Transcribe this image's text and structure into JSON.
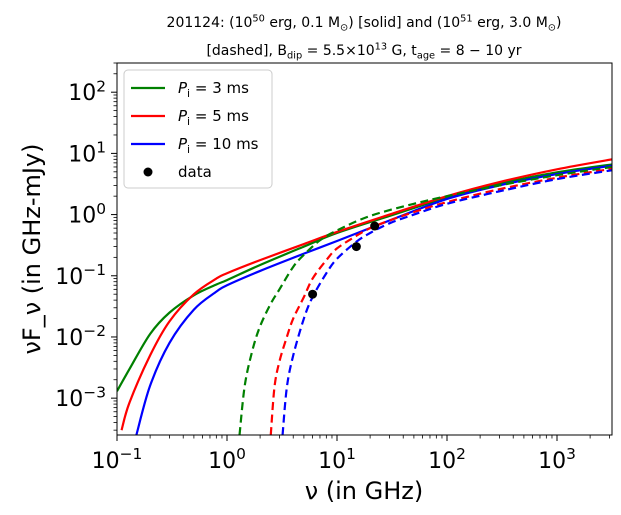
{
  "chart_data": {
    "type": "line",
    "title_line1": "201124: (10^50 erg, 0.1 M_sun) [solid] and (10^51 erg, 3.0 M_sun)",
    "title_line2": "[dashed], B_dip = 5.5×10^13 G, t_age = 8 − 10 yr",
    "xlabel": "ν (in GHz)",
    "ylabel": "νF_ν (in GHz-mJy)",
    "xscale": "log",
    "yscale": "log",
    "xlim": [
      0.1,
      3162
    ],
    "ylim": [
      0.00025,
      300
    ],
    "x_ticks": [
      {
        "value": 0.1,
        "label": "10^−1"
      },
      {
        "value": 1,
        "label": "10^0"
      },
      {
        "value": 10,
        "label": "10^1"
      },
      {
        "value": 100,
        "label": "10^2"
      },
      {
        "value": 1000,
        "label": "10^3"
      }
    ],
    "y_ticks": [
      {
        "value": 0.001,
        "label": "10^−3"
      },
      {
        "value": 0.01,
        "label": "10^−2"
      },
      {
        "value": 0.1,
        "label": "10^−1"
      },
      {
        "value": 1,
        "label": "10^0"
      },
      {
        "value": 10,
        "label": "10^1"
      },
      {
        "value": 100,
        "label": "10^2"
      }
    ],
    "legend": {
      "placement": "top-left",
      "entries": [
        {
          "label": "P_i = 3 ms",
          "color": "#008000",
          "kind": "line"
        },
        {
          "label": "P_i = 5 ms",
          "color": "#ff0000",
          "kind": "line"
        },
        {
          "label": "P_i = 10 ms",
          "color": "#0000ff",
          "kind": "line"
        },
        {
          "label": "data",
          "color": "#000000",
          "kind": "marker"
        }
      ]
    },
    "series": [
      {
        "name": "P_i = 3 ms (solid)",
        "color": "#008000",
        "style": "solid",
        "x": [
          0.1,
          0.13,
          0.2,
          0.3,
          0.5,
          0.8,
          1,
          2,
          5,
          10,
          30,
          100,
          300,
          1000,
          3162
        ],
        "y": [
          0.0013,
          0.003,
          0.0112,
          0.025,
          0.048,
          0.072,
          0.085,
          0.15,
          0.3,
          0.5,
          0.95,
          1.9,
          3.2,
          4.9,
          6.6
        ]
      },
      {
        "name": "P_i = 5 ms (solid)",
        "color": "#ff0000",
        "style": "solid",
        "x": [
          0.11,
          0.13,
          0.2,
          0.3,
          0.5,
          0.8,
          1,
          2,
          5,
          10,
          30,
          100,
          300,
          1000,
          3162
        ],
        "y": [
          0.0003,
          0.00085,
          0.005,
          0.018,
          0.05,
          0.09,
          0.11,
          0.18,
          0.33,
          0.52,
          1.0,
          2.0,
          3.4,
          5.5,
          8.0
        ]
      },
      {
        "name": "P_i = 10 ms (solid)",
        "color": "#0000ff",
        "style": "solid",
        "x": [
          0.15,
          0.2,
          0.3,
          0.5,
          0.8,
          1,
          2,
          5,
          10,
          30,
          100,
          300,
          1000,
          3162
        ],
        "y": [
          0.00025,
          0.0016,
          0.008,
          0.028,
          0.055,
          0.07,
          0.12,
          0.23,
          0.37,
          0.8,
          1.8,
          3.0,
          4.6,
          6.3
        ]
      },
      {
        "name": "P_i = 3 ms (dashed)",
        "color": "#008000",
        "style": "dashed",
        "x": [
          1.3,
          1.45,
          1.7,
          2,
          2.5,
          3,
          4,
          5,
          7,
          10,
          20,
          50,
          100,
          300,
          1000,
          3162
        ],
        "y": [
          0.00025,
          0.0016,
          0.006,
          0.015,
          0.035,
          0.06,
          0.14,
          0.22,
          0.38,
          0.55,
          0.95,
          1.5,
          2.0,
          3.0,
          4.4,
          6.0
        ]
      },
      {
        "name": "P_i = 5 ms (dashed)",
        "color": "#ff0000",
        "style": "dashed",
        "x": [
          2.5,
          2.7,
          3,
          3.5,
          4,
          5,
          6,
          8,
          10,
          15,
          20,
          30,
          50,
          100,
          300,
          1000,
          3162
        ],
        "y": [
          0.00025,
          0.0015,
          0.004,
          0.01,
          0.02,
          0.045,
          0.09,
          0.18,
          0.28,
          0.45,
          0.6,
          0.8,
          1.1,
          1.6,
          2.6,
          4.0,
          5.6
        ]
      },
      {
        "name": "P_i = 10 ms (dashed)",
        "color": "#0000ff",
        "style": "dashed",
        "x": [
          3.2,
          3.5,
          4,
          5,
          6,
          8,
          10,
          15,
          20,
          30,
          50,
          100,
          300,
          1000,
          3162
        ],
        "y": [
          0.00025,
          0.0015,
          0.005,
          0.02,
          0.045,
          0.11,
          0.19,
          0.36,
          0.5,
          0.72,
          1.0,
          1.5,
          2.4,
          3.8,
          5.3
        ]
      }
    ],
    "data_points": {
      "name": "data",
      "x": [
        6.0,
        15.0,
        22.0
      ],
      "y": [
        0.05,
        0.3,
        0.65
      ]
    }
  }
}
